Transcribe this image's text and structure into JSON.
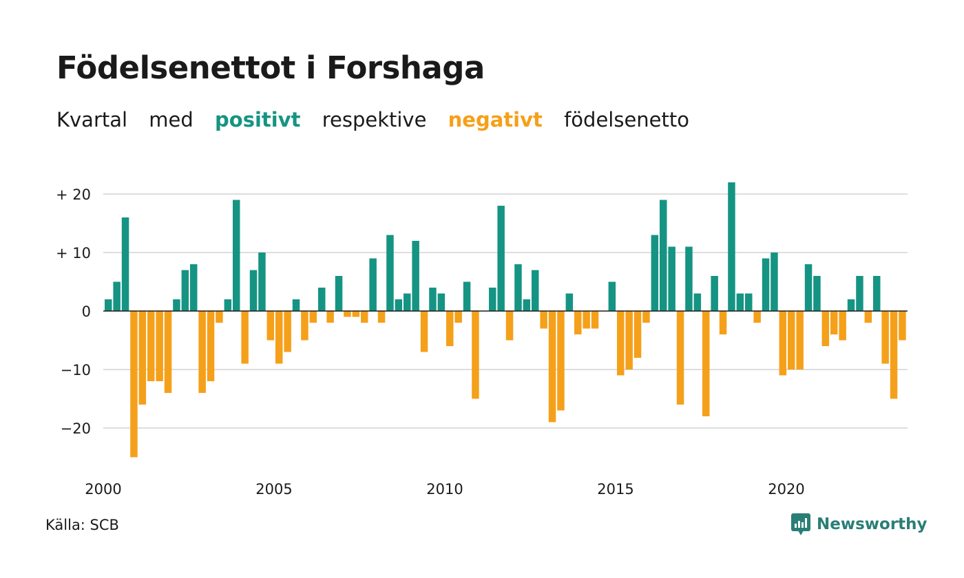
{
  "title": "Födelsenettot i Forshaga",
  "subtitle": {
    "part1": "Kvartal",
    "part2": "med",
    "positive_word": "positivt",
    "part3": "respektive",
    "negative_word": "negativt",
    "part4": "födelsenetto"
  },
  "source": "Källa: SCB",
  "brand": {
    "name": "Newsworthy",
    "icon": "newsworthy-logo-icon"
  },
  "colors": {
    "positive": "#169483",
    "negative": "#f5a01a",
    "grid": "#dddddd",
    "brand": "#2a7e76"
  },
  "chart_data": {
    "type": "bar",
    "title": "Födelsenettot i Forshaga",
    "xlabel": "",
    "ylabel": "",
    "ylim": [
      -26,
      23
    ],
    "y_ticks": [
      {
        "value": 20,
        "label": "+ 20"
      },
      {
        "value": 10,
        "label": "+ 10"
      },
      {
        "value": 0,
        "label": "0"
      },
      {
        "value": -10,
        "label": "−10"
      },
      {
        "value": -20,
        "label": "−20"
      }
    ],
    "x_ticks": [
      {
        "value": 2000,
        "label": "2000"
      },
      {
        "value": 2005,
        "label": "2005"
      },
      {
        "value": 2010,
        "label": "2010"
      },
      {
        "value": 2015,
        "label": "2015"
      },
      {
        "value": 2020,
        "label": "2020"
      }
    ],
    "start_year": 2000,
    "start_quarter": 1,
    "grid": true,
    "legend": "none",
    "values": [
      2,
      5,
      16,
      -25,
      -16,
      -12,
      -12,
      -14,
      2,
      7,
      8,
      -14,
      -12,
      -2,
      2,
      19,
      -9,
      7,
      10,
      -5,
      -9,
      -7,
      2,
      -5,
      -2,
      4,
      -2,
      6,
      -1,
      -1,
      -2,
      9,
      -2,
      13,
      2,
      3,
      12,
      -7,
      4,
      3,
      -6,
      -2,
      5,
      -15,
      0,
      4,
      18,
      -5,
      8,
      2,
      7,
      -3,
      -19,
      -17,
      3,
      -4,
      -3,
      -3,
      0,
      5,
      -11,
      -10,
      -8,
      -2,
      13,
      19,
      11,
      -16,
      11,
      3,
      -18,
      6,
      -4,
      22,
      3,
      3,
      -2,
      9,
      10,
      -11,
      -10,
      -10,
      8,
      6,
      -6,
      -4,
      -5,
      2,
      6,
      -2,
      6,
      -9,
      -15,
      -5
    ]
  }
}
